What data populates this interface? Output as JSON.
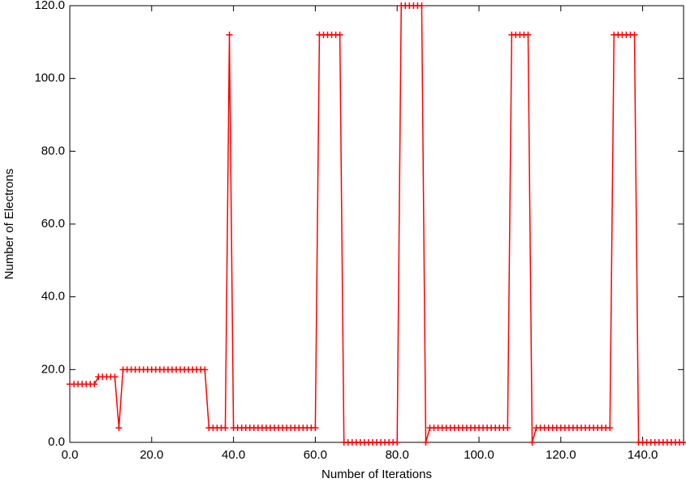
{
  "chart_data": {
    "type": "line",
    "xlabel": "Number of Iterations",
    "ylabel": "Number of Electrons",
    "color": "#ff0000",
    "marker": "+",
    "xlim": [
      0,
      150
    ],
    "ylim": [
      0,
      120
    ],
    "xticks": [
      {
        "value": 0,
        "label": "0.0"
      },
      {
        "value": 20,
        "label": "20.0"
      },
      {
        "value": 40,
        "label": "40.0"
      },
      {
        "value": 60,
        "label": "60.0"
      },
      {
        "value": 80,
        "label": "80.0"
      },
      {
        "value": 100,
        "label": "100.0"
      },
      {
        "value": 120,
        "label": "120.0"
      },
      {
        "value": 140,
        "label": "140.0"
      }
    ],
    "yticks": [
      {
        "value": 0,
        "label": "0.0"
      },
      {
        "value": 20,
        "label": "20.0"
      },
      {
        "value": 40,
        "label": "40.0"
      },
      {
        "value": 60,
        "label": "60.0"
      },
      {
        "value": 80,
        "label": "80.0"
      },
      {
        "value": 100,
        "label": "100.0"
      },
      {
        "value": 120,
        "label": "120.0"
      }
    ],
    "x": [
      0,
      1,
      2,
      3,
      4,
      5,
      6,
      7,
      8,
      9,
      10,
      11,
      12,
      13,
      14,
      15,
      16,
      17,
      18,
      19,
      20,
      21,
      22,
      23,
      24,
      25,
      26,
      27,
      28,
      29,
      30,
      31,
      32,
      33,
      34,
      35,
      36,
      37,
      38,
      39,
      40,
      41,
      42,
      43,
      44,
      45,
      46,
      47,
      48,
      49,
      50,
      51,
      52,
      53,
      54,
      55,
      56,
      57,
      58,
      59,
      60,
      61,
      62,
      63,
      64,
      65,
      66,
      67,
      68,
      69,
      70,
      71,
      72,
      73,
      74,
      75,
      76,
      77,
      78,
      79,
      80,
      81,
      82,
      83,
      84,
      85,
      86,
      87,
      88,
      89,
      90,
      91,
      92,
      93,
      94,
      95,
      96,
      97,
      98,
      99,
      100,
      101,
      102,
      103,
      104,
      105,
      106,
      107,
      108,
      109,
      110,
      111,
      112,
      113,
      114,
      115,
      116,
      117,
      118,
      119,
      120,
      121,
      122,
      123,
      124,
      125,
      126,
      127,
      128,
      129,
      130,
      131,
      132,
      133,
      134,
      135,
      136,
      137,
      138,
      139,
      140,
      141,
      142,
      143,
      144,
      145,
      146,
      147,
      148,
      149,
      150
    ],
    "values": [
      16,
      16,
      16,
      16,
      16,
      16,
      16,
      18,
      18,
      18,
      18,
      18,
      4,
      20,
      20,
      20,
      20,
      20,
      20,
      20,
      20,
      20,
      20,
      20,
      20,
      20,
      20,
      20,
      20,
      20,
      20,
      20,
      20,
      20,
      4,
      4,
      4,
      4,
      4,
      112,
      4,
      4,
      4,
      4,
      4,
      4,
      4,
      4,
      4,
      4,
      4,
      4,
      4,
      4,
      4,
      4,
      4,
      4,
      4,
      4,
      4,
      112,
      112,
      112,
      112,
      112,
      112,
      0,
      0,
      0,
      0,
      0,
      0,
      0,
      0,
      0,
      0,
      0,
      0,
      0,
      0,
      120,
      120,
      120,
      120,
      120,
      120,
      0,
      4,
      4,
      4,
      4,
      4,
      4,
      4,
      4,
      4,
      4,
      4,
      4,
      4,
      4,
      4,
      4,
      4,
      4,
      4,
      4,
      112,
      112,
      112,
      112,
      112,
      0,
      4,
      4,
      4,
      4,
      4,
      4,
      4,
      4,
      4,
      4,
      4,
      4,
      4,
      4,
      4,
      4,
      4,
      4,
      4,
      112,
      112,
      112,
      112,
      112,
      112,
      0,
      0,
      0,
      0,
      0,
      0,
      0,
      0,
      0,
      0,
      0,
      0
    ]
  }
}
